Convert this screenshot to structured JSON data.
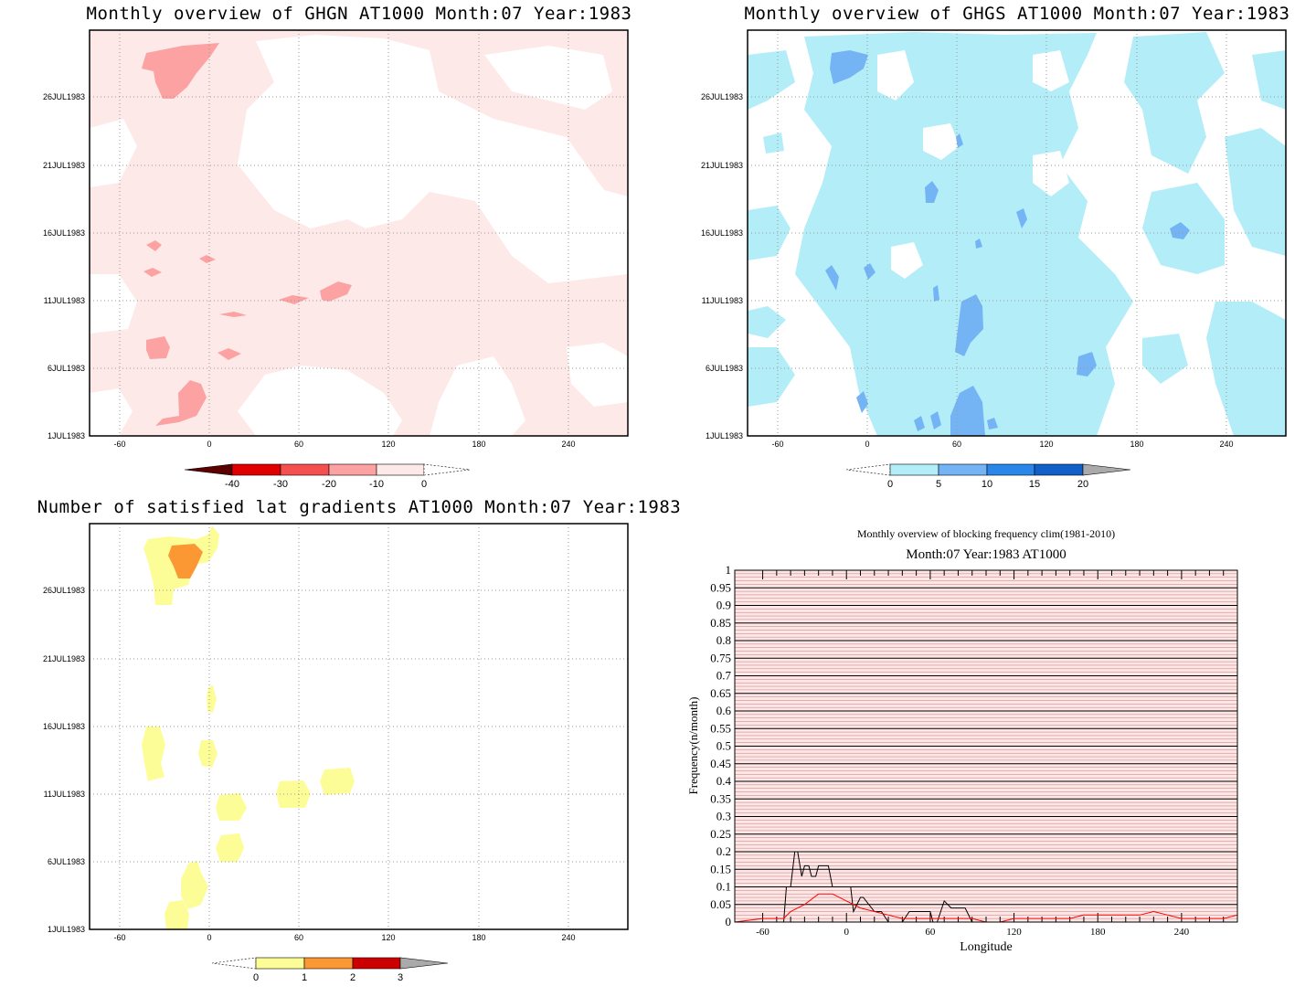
{
  "chart_data": [
    {
      "type": "heatmap",
      "title": "Monthly overview of GHGN AT1000 Month:07 Year:1983",
      "x_ticks": [
        "-60",
        "0",
        "60",
        "120",
        "180",
        "240"
      ],
      "y_ticks": [
        "1JUL1983",
        "6JUL1983",
        "11JUL1983",
        "16JUL1983",
        "21JUL1983",
        "26JUL1983"
      ],
      "xlim": [
        -80,
        280
      ],
      "colorbar": {
        "labels": [
          "-40",
          "-30",
          "-20",
          "-10",
          "0"
        ],
        "colors": [
          "#5a0000",
          "#e00000",
          "#f45050",
          "#fca2a2",
          "#fee9e9"
        ]
      },
      "grid": true
    },
    {
      "type": "heatmap",
      "title": "Monthly overview of GHGS AT1000 Month:07 Year:1983",
      "x_ticks": [
        "-60",
        "0",
        "60",
        "120",
        "180",
        "240"
      ],
      "y_ticks": [
        "1JUL1983",
        "6JUL1983",
        "11JUL1983",
        "16JUL1983",
        "21JUL1983",
        "26JUL1983"
      ],
      "xlim": [
        -80,
        280
      ],
      "colorbar": {
        "labels": [
          "0",
          "5",
          "10",
          "15",
          "20"
        ],
        "colors": [
          "#b3eef8",
          "#74b4f4",
          "#2a86e8",
          "#1060c8",
          "#aaaaaa"
        ]
      },
      "grid": true
    },
    {
      "type": "heatmap",
      "title": "Number of satisfied lat gradients AT1000 Month:07 Year:1983",
      "x_ticks": [
        "-60",
        "0",
        "60",
        "120",
        "180",
        "240"
      ],
      "y_ticks": [
        "1JUL1983",
        "6JUL1983",
        "11JUL1983",
        "16JUL1983",
        "21JUL1983",
        "26JUL1983"
      ],
      "xlim": [
        -80,
        280
      ],
      "colorbar": {
        "labels": [
          "0",
          "1",
          "2",
          "3"
        ],
        "colors": [
          "#fdfd98",
          "#fb9834",
          "#cc0000",
          "#aaaaaa"
        ]
      },
      "grid": true
    },
    {
      "type": "line",
      "title": "Monthly overview of blocking frequency clim(1981-2010)",
      "subtitle": "Month:07 Year:1983  AT1000",
      "xlabel": "Longitude",
      "ylabel": "Frequency(n/month)",
      "xlim": [
        -80,
        280
      ],
      "ylim": [
        0,
        1
      ],
      "x_ticks": [
        "-60",
        "0",
        "60",
        "120",
        "180",
        "240"
      ],
      "y_ticks": [
        "0",
        "0.05",
        "0.1",
        "0.15",
        "0.2",
        "0.25",
        "0.3",
        "0.35",
        "0.4",
        "0.45",
        "0.5",
        "0.55",
        "0.6",
        "0.65",
        "0.7",
        "0.75",
        "0.8",
        "0.85",
        "0.9",
        "0.95",
        "1"
      ],
      "series": [
        {
          "color": "#000000",
          "x": [
            -80,
            -45,
            -43,
            -40,
            -37,
            -35,
            -32,
            -30,
            -27,
            -25,
            -22,
            -20,
            -17,
            -13,
            -10,
            -5,
            -3,
            3,
            5,
            10,
            12,
            20,
            25,
            30,
            35,
            40,
            45,
            50,
            52,
            55,
            60,
            62,
            65,
            70,
            75,
            78,
            80,
            85,
            90,
            95,
            100,
            150,
            200,
            280
          ],
          "y": [
            0,
            0,
            0.1,
            0.1,
            0.2,
            0.2,
            0.13,
            0.16,
            0.16,
            0.13,
            0.13,
            0.16,
            0.16,
            0.16,
            0.1,
            0.1,
            0.1,
            0.1,
            0.03,
            0.07,
            0.07,
            0.03,
            0.03,
            0.0,
            0.0,
            0.0,
            0.03,
            0.03,
            0.03,
            0.03,
            0.03,
            0.0,
            0.0,
            0.06,
            0.04,
            0.04,
            0.04,
            0.04,
            0.0,
            0.0,
            0.0,
            0.0,
            0.0,
            0.0
          ]
        },
        {
          "color": "#ff0000",
          "x": [
            -80,
            -60,
            -50,
            -45,
            -40,
            -35,
            -30,
            -20,
            -10,
            0,
            10,
            20,
            30,
            40,
            50,
            60,
            70,
            80,
            90,
            100,
            110,
            120,
            130,
            140,
            150,
            160,
            170,
            180,
            190,
            200,
            210,
            220,
            230,
            240,
            250,
            260,
            270,
            280
          ],
          "y": [
            0.0,
            0.01,
            0.01,
            0.01,
            0.03,
            0.04,
            0.05,
            0.08,
            0.08,
            0.06,
            0.04,
            0.03,
            0.02,
            0.01,
            0.01,
            0.01,
            0.01,
            0.01,
            0.01,
            0.0,
            0.0,
            0.01,
            0.01,
            0.01,
            0.01,
            0.01,
            0.02,
            0.02,
            0.02,
            0.02,
            0.02,
            0.03,
            0.02,
            0.01,
            0.01,
            0.01,
            0.01,
            0.02
          ]
        }
      ]
    }
  ]
}
